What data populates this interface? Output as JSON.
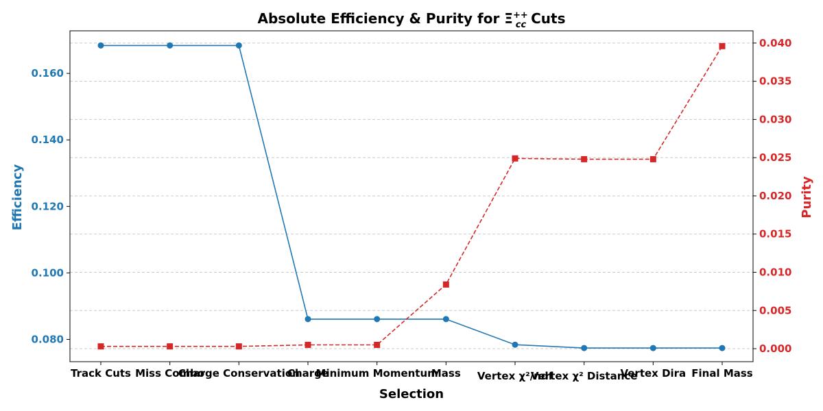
{
  "chart_data": {
    "type": "line",
    "title": "Absolute Efficiency & Purity for Ξcc++ Cuts",
    "title_parts": {
      "prefix": "Absolute Efficiency & Purity for ",
      "symbol": "Ξ",
      "superscript": "++",
      "subscript": "cc",
      "suffix": " Cuts"
    },
    "xlabel": "Selection",
    "categories": [
      "Track Cuts",
      "Miss Combo",
      "Charge Conservation",
      "Charge",
      "Minimum Momentum",
      "Mass",
      "Vertex χ²/ndf",
      "Vertex χ² Distance",
      "Vertex Dira",
      "Final Mass"
    ],
    "grid": true,
    "series": [
      {
        "name": "Efficiency",
        "axis": "left",
        "color": "#1f77b4",
        "marker": "circle",
        "linestyle": "solid",
        "values": [
          0.1684,
          0.1684,
          0.1684,
          0.0861,
          0.0861,
          0.0861,
          0.0784,
          0.0774,
          0.0774,
          0.0774
        ]
      },
      {
        "name": "Purity",
        "axis": "right",
        "color": "#d62728",
        "marker": "square",
        "linestyle": "dashed",
        "values": [
          0.0003,
          0.0003,
          0.0003,
          0.0005,
          0.0005,
          0.0084,
          0.0249,
          0.0248,
          0.0248,
          0.0396
        ]
      }
    ],
    "y_left": {
      "label": "Efficiency",
      "color": "#1f77b4",
      "lim": [
        0.0733,
        0.1728
      ],
      "ticks": [
        0.08,
        0.1,
        0.12,
        0.14,
        0.16
      ],
      "tick_labels": [
        "0.080",
        "0.100",
        "0.120",
        "0.140",
        "0.160"
      ]
    },
    "y_right": {
      "label": "Purity",
      "color": "#d62728",
      "lim": [
        -0.0017,
        0.0416
      ],
      "ticks": [
        0.0,
        0.005,
        0.01,
        0.015,
        0.02,
        0.025,
        0.03,
        0.035,
        0.04
      ],
      "tick_labels": [
        "0.000",
        "0.005",
        "0.010",
        "0.015",
        "0.020",
        "0.025",
        "0.030",
        "0.035",
        "0.040"
      ]
    }
  }
}
